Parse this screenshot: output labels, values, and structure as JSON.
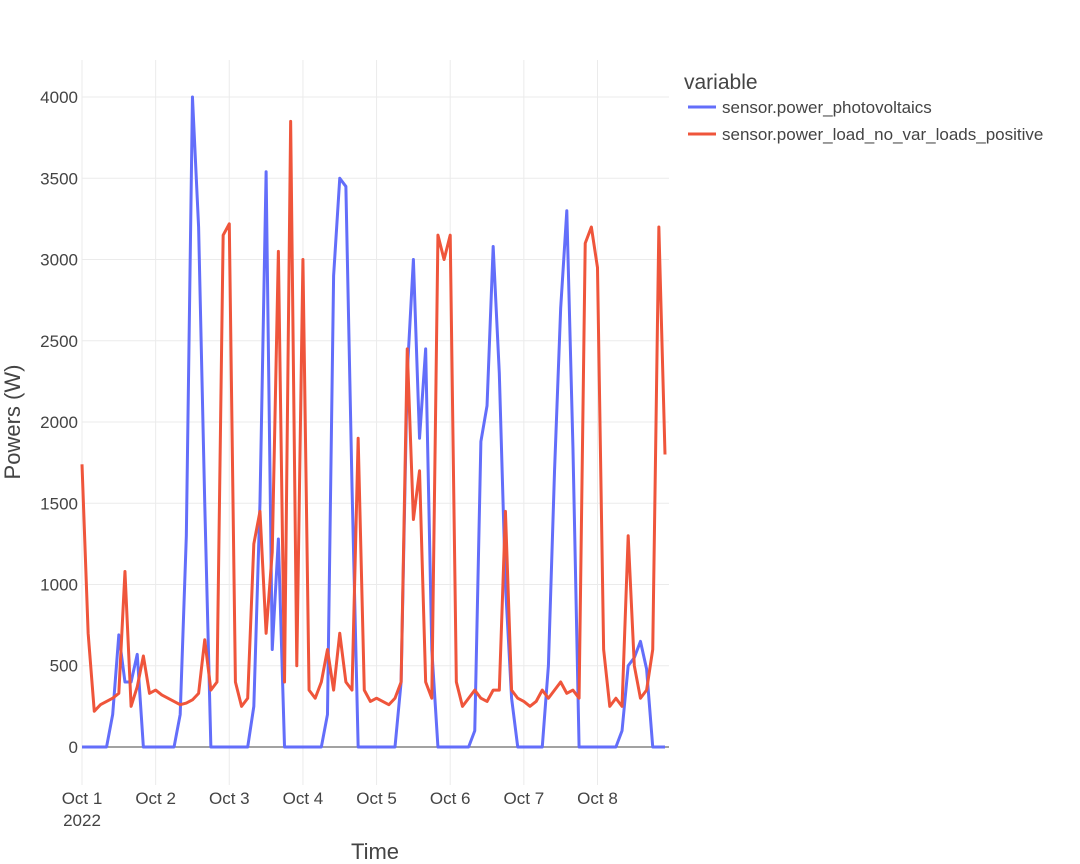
{
  "chart_data": {
    "type": "line",
    "x_label": "Time",
    "y_label": "Powers (W)",
    "legend_title": "variable",
    "legend_position": "right",
    "grid": true,
    "xlim": [
      "2022-10-01T00:00",
      "2022-10-08T22:00"
    ],
    "ylim": [
      -234,
      4228
    ],
    "yticks": [
      0,
      500,
      1000,
      1500,
      2000,
      2500,
      3000,
      3500,
      4000
    ],
    "xticks": [
      {
        "value": "2022-10-01T00:00",
        "label": "Oct 1",
        "sublabel": "2022"
      },
      {
        "value": "2022-10-02T00:00",
        "label": "Oct 2"
      },
      {
        "value": "2022-10-03T00:00",
        "label": "Oct 3"
      },
      {
        "value": "2022-10-04T00:00",
        "label": "Oct 4"
      },
      {
        "value": "2022-10-05T00:00",
        "label": "Oct 5"
      },
      {
        "value": "2022-10-06T00:00",
        "label": "Oct 6"
      },
      {
        "value": "2022-10-07T00:00",
        "label": "Oct 7"
      },
      {
        "value": "2022-10-08T00:00",
        "label": "Oct 8"
      }
    ],
    "x": [
      "2022-10-01T00:00",
      "2022-10-01T02:00",
      "2022-10-01T04:00",
      "2022-10-01T06:00",
      "2022-10-01T08:00",
      "2022-10-01T10:00",
      "2022-10-01T12:00",
      "2022-10-01T14:00",
      "2022-10-01T16:00",
      "2022-10-01T18:00",
      "2022-10-01T20:00",
      "2022-10-01T22:00",
      "2022-10-02T00:00",
      "2022-10-02T02:00",
      "2022-10-02T04:00",
      "2022-10-02T06:00",
      "2022-10-02T08:00",
      "2022-10-02T10:00",
      "2022-10-02T12:00",
      "2022-10-02T14:00",
      "2022-10-02T16:00",
      "2022-10-02T18:00",
      "2022-10-02T20:00",
      "2022-10-02T22:00",
      "2022-10-03T00:00",
      "2022-10-03T02:00",
      "2022-10-03T04:00",
      "2022-10-03T06:00",
      "2022-10-03T08:00",
      "2022-10-03T10:00",
      "2022-10-03T12:00",
      "2022-10-03T14:00",
      "2022-10-03T16:00",
      "2022-10-03T18:00",
      "2022-10-03T20:00",
      "2022-10-03T22:00",
      "2022-10-04T00:00",
      "2022-10-04T02:00",
      "2022-10-04T04:00",
      "2022-10-04T06:00",
      "2022-10-04T08:00",
      "2022-10-04T10:00",
      "2022-10-04T12:00",
      "2022-10-04T14:00",
      "2022-10-04T16:00",
      "2022-10-04T18:00",
      "2022-10-04T20:00",
      "2022-10-04T22:00",
      "2022-10-05T00:00",
      "2022-10-05T02:00",
      "2022-10-05T04:00",
      "2022-10-05T06:00",
      "2022-10-05T08:00",
      "2022-10-05T10:00",
      "2022-10-05T12:00",
      "2022-10-05T14:00",
      "2022-10-05T16:00",
      "2022-10-05T18:00",
      "2022-10-05T20:00",
      "2022-10-05T22:00",
      "2022-10-06T00:00",
      "2022-10-06T02:00",
      "2022-10-06T04:00",
      "2022-10-06T06:00",
      "2022-10-06T08:00",
      "2022-10-06T10:00",
      "2022-10-06T12:00",
      "2022-10-06T14:00",
      "2022-10-06T16:00",
      "2022-10-06T18:00",
      "2022-10-06T20:00",
      "2022-10-06T22:00",
      "2022-10-07T00:00",
      "2022-10-07T02:00",
      "2022-10-07T04:00",
      "2022-10-07T06:00",
      "2022-10-07T08:00",
      "2022-10-07T10:00",
      "2022-10-07T12:00",
      "2022-10-07T14:00",
      "2022-10-07T16:00",
      "2022-10-07T18:00",
      "2022-10-07T20:00",
      "2022-10-07T22:00",
      "2022-10-08T00:00",
      "2022-10-08T02:00",
      "2022-10-08T04:00",
      "2022-10-08T06:00",
      "2022-10-08T08:00",
      "2022-10-08T10:00",
      "2022-10-08T12:00",
      "2022-10-08T14:00",
      "2022-10-08T16:00",
      "2022-10-08T18:00",
      "2022-10-08T20:00",
      "2022-10-08T22:00"
    ],
    "series": [
      {
        "name": "sensor.power_photovoltaics",
        "color": "#636efa",
        "values": [
          0,
          0,
          0,
          0,
          0,
          200,
          690,
          400,
          400,
          570,
          0,
          0,
          0,
          0,
          0,
          0,
          200,
          1300,
          4000,
          3200,
          1500,
          0,
          0,
          0,
          0,
          0,
          0,
          0,
          250,
          1500,
          3540,
          600,
          1280,
          0,
          0,
          0,
          0,
          0,
          0,
          0,
          200,
          2900,
          3500,
          3450,
          1600,
          0,
          0,
          0,
          0,
          0,
          0,
          0,
          400,
          2300,
          3000,
          1900,
          2450,
          600,
          0,
          0,
          0,
          0,
          0,
          0,
          100,
          1880,
          2100,
          3080,
          2300,
          1000,
          300,
          0,
          0,
          0,
          0,
          0,
          500,
          1700,
          2700,
          3300,
          1840,
          0,
          0,
          0,
          0,
          0,
          0,
          0,
          100,
          500,
          550,
          650,
          480,
          0,
          0,
          0
        ]
      },
      {
        "name": "sensor.power_load_no_var_loads_positive",
        "color": "#ef553b",
        "values": [
          1740,
          700,
          220,
          260,
          280,
          300,
          330,
          1080,
          250,
          370,
          560,
          330,
          350,
          320,
          300,
          280,
          260,
          270,
          290,
          330,
          660,
          350,
          400,
          3150,
          3220,
          400,
          250,
          300,
          1250,
          1450,
          700,
          1200,
          3050,
          400,
          3850,
          500,
          3000,
          350,
          300,
          400,
          600,
          350,
          700,
          400,
          350,
          1900,
          350,
          280,
          300,
          280,
          260,
          300,
          400,
          2450,
          1400,
          1700,
          400,
          300,
          3150,
          3000,
          3150,
          400,
          250,
          300,
          350,
          300,
          280,
          350,
          350,
          1450,
          350,
          300,
          280,
          250,
          280,
          350,
          300,
          350,
          400,
          330,
          350,
          300,
          3100,
          3200,
          2950,
          600,
          250,
          300,
          250,
          1300,
          500,
          300,
          350,
          600,
          3200,
          1800
        ]
      }
    ]
  }
}
